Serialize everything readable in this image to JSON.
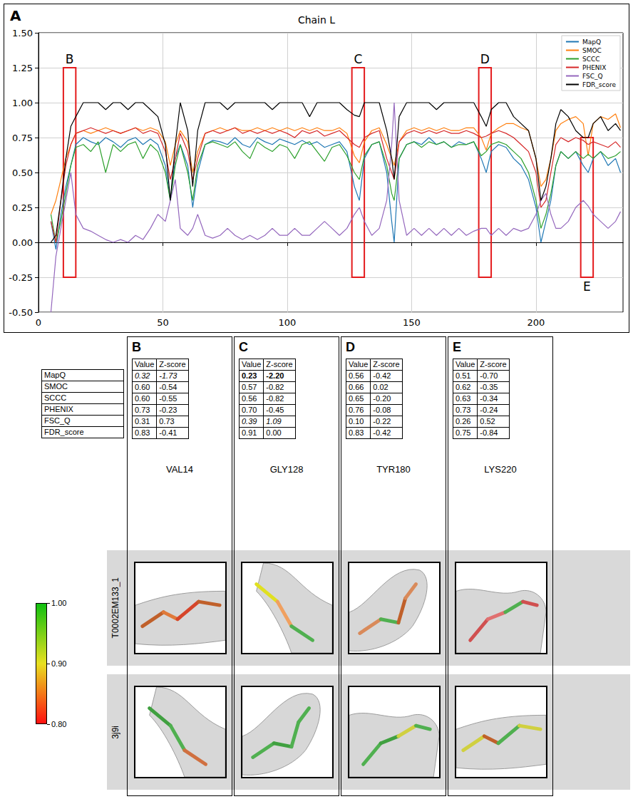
{
  "chart_data": {
    "type": "line",
    "title": "Chain L",
    "x": [
      5,
      7,
      9,
      11,
      13,
      15,
      18,
      21,
      24,
      27,
      30,
      33,
      36,
      39,
      42,
      45,
      48,
      51,
      53,
      55,
      57,
      60,
      62,
      64,
      67,
      70,
      73,
      76,
      79,
      82,
      85,
      88,
      91,
      94,
      97,
      100,
      103,
      106,
      109,
      112,
      115,
      118,
      121,
      124,
      127,
      129,
      131,
      134,
      137,
      140,
      142,
      143,
      145,
      148,
      151,
      154,
      157,
      160,
      163,
      166,
      169,
      172,
      175,
      178,
      180,
      182,
      185,
      188,
      191,
      194,
      197,
      200,
      202,
      204,
      206,
      208,
      210,
      213,
      216,
      219,
      221,
      223,
      226,
      229,
      232,
      234
    ],
    "series": [
      {
        "name": "MapQ",
        "color": "#1f77b4",
        "values": [
          0.15,
          -0.05,
          0.2,
          0.4,
          0.55,
          0.7,
          0.75,
          0.72,
          0.7,
          0.75,
          0.72,
          0.68,
          0.73,
          0.75,
          0.7,
          0.74,
          0.7,
          0.55,
          0.3,
          0.6,
          0.7,
          0.55,
          0.25,
          0.5,
          0.7,
          0.73,
          0.72,
          0.7,
          0.75,
          0.7,
          0.68,
          0.75,
          0.72,
          0.7,
          0.74,
          0.72,
          0.7,
          0.73,
          0.7,
          0.72,
          0.68,
          0.7,
          0.72,
          0.65,
          0.4,
          0.3,
          0.6,
          0.7,
          0.72,
          0.5,
          0.15,
          0.0,
          0.6,
          0.7,
          0.72,
          0.7,
          0.75,
          0.7,
          0.72,
          0.68,
          0.72,
          0.7,
          0.72,
          0.6,
          0.5,
          0.65,
          0.7,
          0.68,
          0.6,
          0.55,
          0.45,
          0.25,
          0.0,
          0.15,
          0.3,
          0.55,
          0.65,
          0.6,
          0.65,
          0.55,
          0.5,
          0.6,
          0.65,
          0.55,
          0.6,
          0.5
        ]
      },
      {
        "name": "SMOC",
        "color": "#ff7f0e",
        "values": [
          0.2,
          0.3,
          0.45,
          0.6,
          0.7,
          0.78,
          0.8,
          0.78,
          0.8,
          0.82,
          0.8,
          0.78,
          0.8,
          0.82,
          0.8,
          0.82,
          0.8,
          0.72,
          0.55,
          0.7,
          0.8,
          0.72,
          0.5,
          0.65,
          0.78,
          0.8,
          0.82,
          0.8,
          0.82,
          0.8,
          0.8,
          0.82,
          0.8,
          0.82,
          0.8,
          0.82,
          0.8,
          0.82,
          0.8,
          0.82,
          0.8,
          0.8,
          0.82,
          0.78,
          0.62,
          0.57,
          0.72,
          0.8,
          0.82,
          0.7,
          0.6,
          0.55,
          0.72,
          0.8,
          0.82,
          0.8,
          0.82,
          0.8,
          0.82,
          0.8,
          0.8,
          0.82,
          0.82,
          0.75,
          0.66,
          0.78,
          0.82,
          0.85,
          0.85,
          0.82,
          0.8,
          0.6,
          0.4,
          0.45,
          0.6,
          0.8,
          0.85,
          0.88,
          0.9,
          0.85,
          0.62,
          0.85,
          0.9,
          0.88,
          0.92,
          0.82
        ]
      },
      {
        "name": "SCCC",
        "color": "#2ca02c",
        "values": [
          0.2,
          0.0,
          0.15,
          0.35,
          0.55,
          0.68,
          0.7,
          0.65,
          0.72,
          0.5,
          0.7,
          0.65,
          0.7,
          0.72,
          0.6,
          0.7,
          0.65,
          0.5,
          0.3,
          0.55,
          0.7,
          0.5,
          0.3,
          0.55,
          0.7,
          0.72,
          0.7,
          0.68,
          0.72,
          0.65,
          0.6,
          0.72,
          0.68,
          0.65,
          0.7,
          0.68,
          0.6,
          0.7,
          0.72,
          0.65,
          0.58,
          0.68,
          0.7,
          0.62,
          0.5,
          0.45,
          0.62,
          0.7,
          0.72,
          0.55,
          0.35,
          0.3,
          0.6,
          0.7,
          0.72,
          0.68,
          0.72,
          0.7,
          0.72,
          0.68,
          0.7,
          0.7,
          0.72,
          0.62,
          0.65,
          0.7,
          0.72,
          0.7,
          0.65,
          0.6,
          0.5,
          0.3,
          0.1,
          0.2,
          0.35,
          0.55,
          0.65,
          0.6,
          0.65,
          0.6,
          0.63,
          0.6,
          0.65,
          0.6,
          0.62,
          0.65
        ]
      },
      {
        "name": "PHENIX",
        "color": "#d62728",
        "values": [
          0.15,
          0.0,
          0.3,
          0.55,
          0.7,
          0.78,
          0.8,
          0.82,
          0.8,
          0.78,
          0.8,
          0.78,
          0.8,
          0.82,
          0.78,
          0.8,
          0.78,
          0.65,
          0.45,
          0.6,
          0.78,
          0.65,
          0.45,
          0.6,
          0.78,
          0.8,
          0.78,
          0.8,
          0.82,
          0.78,
          0.8,
          0.78,
          0.8,
          0.78,
          0.8,
          0.78,
          0.75,
          0.8,
          0.78,
          0.8,
          0.76,
          0.78,
          0.8,
          0.75,
          0.7,
          0.68,
          0.75,
          0.78,
          0.8,
          0.6,
          0.5,
          0.45,
          0.72,
          0.78,
          0.8,
          0.78,
          0.8,
          0.78,
          0.8,
          0.78,
          0.78,
          0.8,
          0.78,
          0.75,
          0.76,
          0.78,
          0.8,
          0.78,
          0.75,
          0.7,
          0.65,
          0.5,
          0.25,
          0.3,
          0.5,
          0.7,
          0.75,
          0.72,
          0.75,
          0.73,
          0.7,
          0.72,
          0.7,
          0.68,
          0.72,
          0.68
        ]
      },
      {
        "name": "FSC_Q",
        "color": "#9467bd",
        "values": [
          -0.5,
          -0.1,
          0.1,
          0.3,
          0.5,
          0.2,
          0.1,
          0.08,
          0.05,
          0.02,
          0.0,
          0.02,
          0.0,
          0.05,
          0.02,
          0.1,
          0.2,
          0.15,
          0.3,
          0.45,
          0.1,
          0.05,
          0.1,
          0.2,
          0.05,
          0.03,
          0.05,
          0.1,
          0.05,
          0.02,
          0.05,
          0.02,
          0.05,
          0.1,
          0.05,
          0.05,
          0.1,
          0.05,
          0.05,
          0.1,
          0.15,
          0.1,
          0.05,
          0.1,
          0.2,
          0.25,
          0.15,
          0.05,
          0.1,
          0.3,
          0.7,
          1.0,
          0.3,
          0.05,
          0.1,
          0.05,
          0.1,
          0.05,
          0.1,
          0.05,
          0.1,
          0.05,
          0.08,
          0.1,
          0.1,
          0.05,
          0.1,
          0.05,
          0.1,
          0.08,
          0.1,
          0.2,
          0.3,
          0.35,
          0.2,
          0.1,
          0.1,
          0.15,
          0.25,
          0.3,
          0.26,
          0.2,
          0.15,
          0.1,
          0.15,
          0.22
        ]
      },
      {
        "name": "FDR_score",
        "color": "#000000",
        "values": [
          0.0,
          0.05,
          0.3,
          0.6,
          0.83,
          0.9,
          1.0,
          1.0,
          1.0,
          0.95,
          1.0,
          1.0,
          0.95,
          1.0,
          1.0,
          0.95,
          0.9,
          0.7,
          0.3,
          0.7,
          1.0,
          0.8,
          0.4,
          0.8,
          1.0,
          1.0,
          1.0,
          0.95,
          1.0,
          1.0,
          1.0,
          1.0,
          1.0,
          0.95,
          1.0,
          1.0,
          1.0,
          1.0,
          0.9,
          1.0,
          1.0,
          1.0,
          1.0,
          0.95,
          0.91,
          0.9,
          1.0,
          1.0,
          1.0,
          0.8,
          0.6,
          0.45,
          0.9,
          1.0,
          1.0,
          1.0,
          1.0,
          0.95,
          1.0,
          1.0,
          1.0,
          1.0,
          1.0,
          0.9,
          0.83,
          0.95,
          1.0,
          1.0,
          0.9,
          0.85,
          0.8,
          0.6,
          0.3,
          0.4,
          0.6,
          0.85,
          0.95,
          0.9,
          0.8,
          0.75,
          0.75,
          0.85,
          0.9,
          0.8,
          0.85,
          0.8
        ]
      }
    ],
    "xlim": [
      0,
      235
    ],
    "xticks": [
      0,
      50,
      100,
      150,
      200
    ],
    "ylim": [
      -0.5,
      1.5
    ],
    "yticks": [
      {
        "value": -0.5,
        "label": "-0.50"
      },
      {
        "value": -0.25,
        "label": "-0.25"
      },
      {
        "value": 0,
        "label": "0.00"
      },
      {
        "value": 0.25,
        "label": "0.25"
      },
      {
        "value": 0.5,
        "label": "0.50"
      },
      {
        "value": 0.75,
        "label": "0.75"
      },
      {
        "value": 1,
        "label": "1.00"
      },
      {
        "value": 1.25,
        "label": "1.25"
      },
      {
        "value": 1.5,
        "label": "1.50"
      }
    ],
    "grid": true,
    "legend": "upper right",
    "annotations": [
      {
        "text": "B",
        "x": [
          10,
          15
        ],
        "y": [
          -0.25,
          1.25
        ],
        "position": "top"
      },
      {
        "text": "C",
        "x": [
          126,
          131
        ],
        "y": [
          -0.25,
          1.25
        ],
        "position": "top"
      },
      {
        "text": "D",
        "x": [
          177,
          182
        ],
        "y": [
          -0.25,
          1.25
        ],
        "position": "top"
      },
      {
        "text": "E",
        "x": [
          218,
          223
        ],
        "y": [
          -0.25,
          0.75
        ],
        "position": "bottom"
      }
    ]
  },
  "panel_letter": "A",
  "score_table": {
    "metrics": [
      "MapQ",
      "SMOC",
      "SCCC",
      "PHENIX",
      "FSC_Q",
      "FDR_score"
    ],
    "columns": [
      "Value",
      "Z-score"
    ],
    "panels": [
      {
        "letter": "B",
        "residue": "VAL14",
        "rows": [
          [
            "0.32",
            "-1.73"
          ],
          [
            "0.60",
            "-0.54"
          ],
          [
            "0.60",
            "-0.55"
          ],
          [
            "0.73",
            "-0.23"
          ],
          [
            "0.31",
            "0.73"
          ],
          [
            "0.83",
            "-0.41"
          ]
        ],
        "italic_rows": [
          0
        ],
        "bold_rows": []
      },
      {
        "letter": "C",
        "residue": "GLY128",
        "rows": [
          [
            "0.23",
            "-2.20"
          ],
          [
            "0.57",
            "-0.82"
          ],
          [
            "0.56",
            "-0.82"
          ],
          [
            "0.70",
            "-0.45"
          ],
          [
            "0.39",
            "1.09"
          ],
          [
            "0.91",
            "0.00"
          ]
        ],
        "italic_rows": [
          4
        ],
        "bold_rows": [
          0
        ]
      },
      {
        "letter": "D",
        "residue": "TYR180",
        "rows": [
          [
            "0.56",
            "-0.42"
          ],
          [
            "0.66",
            "0.02"
          ],
          [
            "0.65",
            "-0.20"
          ],
          [
            "0.76",
            "-0.08"
          ],
          [
            "0.10",
            "-0.22"
          ],
          [
            "0.83",
            "-0.42"
          ]
        ],
        "italic_rows": [],
        "bold_rows": []
      },
      {
        "letter": "E",
        "residue": "LYS220",
        "rows": [
          [
            "0.51",
            "-0.70"
          ],
          [
            "0.62",
            "-0.35"
          ],
          [
            "0.63",
            "-0.34"
          ],
          [
            "0.73",
            "-0.24"
          ],
          [
            "0.26",
            "0.52"
          ],
          [
            "0.75",
            "-0.84"
          ]
        ],
        "italic_rows": [],
        "bold_rows": []
      }
    ]
  },
  "structure_rows": [
    "T0002EM133_1",
    "3j9i"
  ],
  "colorbar": {
    "range": [
      0.8,
      1.0
    ],
    "ticks": [
      {
        "value": 1.0,
        "label": "1.00"
      },
      {
        "value": 0.9,
        "label": "0.90"
      },
      {
        "value": 0.8,
        "label": "0.80"
      }
    ]
  }
}
